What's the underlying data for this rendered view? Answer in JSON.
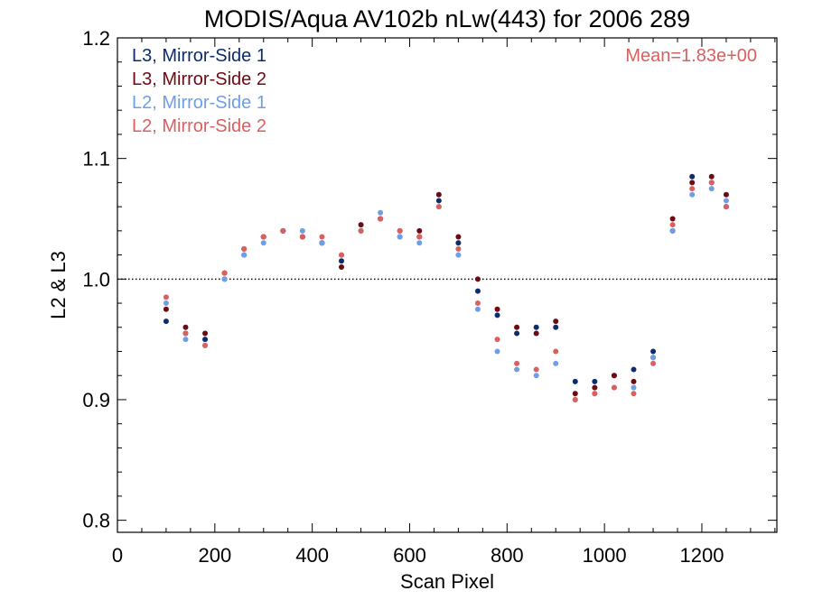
{
  "chart_data": {
    "type": "scatter",
    "title": "MODIS/Aqua AV102b nLw(443) for 2006 289",
    "xlabel": "Scan Pixel",
    "ylabel": "L2 & L3",
    "xlim": [
      0,
      1354
    ],
    "ylim": [
      0.79,
      1.2
    ],
    "xticks": [
      0,
      200,
      400,
      600,
      800,
      1000,
      1200
    ],
    "xtick_labels": [
      "0",
      "200",
      "400",
      "600",
      "800",
      "1000",
      "1200"
    ],
    "yticks": [
      0.8,
      0.9,
      1.0,
      1.1,
      1.2
    ],
    "ytick_labels": [
      "0.8",
      "0.9",
      "1.0",
      "1.1",
      "1.2"
    ],
    "reference_line": {
      "y": 1.0,
      "style": "dotted"
    },
    "annotation": {
      "text": "Mean=1.83e+00",
      "color": "#d9605f",
      "placement": "top-right"
    },
    "legend_placement": "top-left",
    "grid": false,
    "series": [
      {
        "name": "L3, Mirror-Side 1",
        "color": "#0b2d6e",
        "x": [
          100,
          140,
          180,
          220,
          260,
          300,
          340,
          380,
          420,
          460,
          500,
          540,
          580,
          620,
          660,
          700,
          740,
          780,
          820,
          860,
          900,
          940,
          980,
          1020,
          1060,
          1100,
          1140,
          1180,
          1220,
          1250
        ],
        "y": [
          0.965,
          0.955,
          0.95,
          1.0,
          1.02,
          1.035,
          1.04,
          1.035,
          1.03,
          1.015,
          1.04,
          1.05,
          1.035,
          1.035,
          1.065,
          1.03,
          0.99,
          0.97,
          0.955,
          0.96,
          0.96,
          0.915,
          0.915,
          0.92,
          0.925,
          0.94,
          1.04,
          1.085,
          1.08,
          1.06
        ]
      },
      {
        "name": "L3, Mirror-Side 2",
        "color": "#6e0a12",
        "x": [
          100,
          140,
          180,
          220,
          260,
          300,
          340,
          380,
          420,
          460,
          500,
          540,
          580,
          620,
          660,
          700,
          740,
          780,
          820,
          860,
          900,
          940,
          980,
          1020,
          1060,
          1100,
          1140,
          1180,
          1220,
          1250
        ],
        "y": [
          0.975,
          0.96,
          0.955,
          1.005,
          1.025,
          1.035,
          1.04,
          1.035,
          1.03,
          1.01,
          1.045,
          1.05,
          1.04,
          1.04,
          1.07,
          1.035,
          1.0,
          0.975,
          0.96,
          0.955,
          0.965,
          0.905,
          0.91,
          0.92,
          0.915,
          0.935,
          1.05,
          1.08,
          1.085,
          1.07
        ]
      },
      {
        "name": "L2, Mirror-Side 1",
        "color": "#6f9ee8",
        "x": [
          100,
          140,
          180,
          220,
          260,
          300,
          340,
          380,
          420,
          460,
          500,
          540,
          580,
          620,
          660,
          700,
          740,
          780,
          820,
          860,
          900,
          940,
          980,
          1020,
          1060,
          1100,
          1140,
          1180,
          1220,
          1250
        ],
        "y": [
          0.98,
          0.95,
          0.945,
          1.0,
          1.02,
          1.03,
          1.04,
          1.04,
          1.03,
          1.02,
          1.04,
          1.055,
          1.035,
          1.03,
          1.06,
          1.02,
          0.975,
          0.94,
          0.925,
          0.92,
          0.93,
          0.9,
          0.905,
          0.91,
          0.91,
          0.935,
          1.04,
          1.07,
          1.075,
          1.065
        ]
      },
      {
        "name": "L2, Mirror-Side 2",
        "color": "#d9605f",
        "x": [
          100,
          140,
          180,
          220,
          260,
          300,
          340,
          380,
          420,
          460,
          500,
          540,
          580,
          620,
          660,
          700,
          740,
          780,
          820,
          860,
          900,
          940,
          980,
          1020,
          1060,
          1100,
          1140,
          1180,
          1220,
          1250
        ],
        "y": [
          0.985,
          0.955,
          0.945,
          1.005,
          1.025,
          1.035,
          1.04,
          1.035,
          1.035,
          1.02,
          1.04,
          1.05,
          1.04,
          1.035,
          1.06,
          1.025,
          0.98,
          0.95,
          0.93,
          0.925,
          0.94,
          0.9,
          0.905,
          0.91,
          0.905,
          0.93,
          1.045,
          1.075,
          1.08,
          1.06
        ]
      }
    ]
  }
}
